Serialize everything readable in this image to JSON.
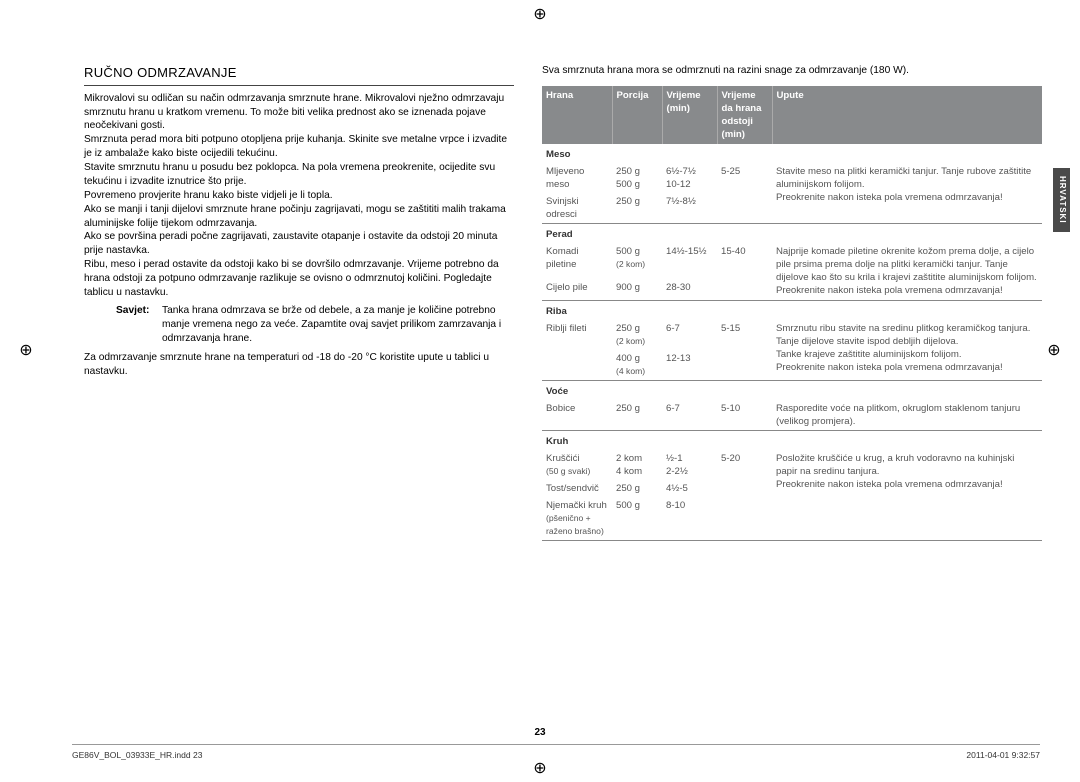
{
  "cropGlyph": "⊕",
  "sideTab": "HRVATSKI",
  "pageNumber": "23",
  "footerLeft": "GE86V_BOL_03933E_HR.indd   23",
  "footerRight": "2011-04-01   9:32:57",
  "left": {
    "heading": "RUČNO ODMRZAVANJE",
    "p1": "Mikrovalovi su odličan su način odmrzavanja smrznute hrane. Mikrovalovi nježno odmrzavaju smrznutu hranu u kratkom vremenu. To može biti velika prednost ako se iznenada pojave neočekivani gosti.",
    "p2": "Smrznuta perad mora biti potpuno otopljena prije kuhanja. Skinite sve metalne vrpce i izvadite je iz ambalaže kako biste ocijedili tekućinu.",
    "p3": "Stavite smrznutu hranu u posudu bez poklopca. Na pola vremena preokrenite, ocijedite svu tekućinu i izvadite iznutrice što prije.",
    "p4": "Povremeno provjerite hranu kako biste vidjeli je li topla.",
    "p5": "Ako se manji i tanji dijelovi smrznute hrane počinju zagrijavati, mogu se zaštititi malih trakama aluminijske folije tijekom odmrzavanja.",
    "p6": "Ako se površina peradi počne zagrijavati, zaustavite otapanje i ostavite da odstoji 20 minuta prije nastavka.",
    "p7": "Ribu, meso i perad ostavite da odstoji kako bi se dovršilo odmrzavanje. Vrijeme potrebno da hrana odstoji za potpuno odmrzavanje razlikuje se ovisno o odmrznutoj količini. Pogledajte tablicu u nastavku.",
    "savjetLabel": "Savjet:",
    "savjetText": "Tanka hrana odmrzava se brže od debele, a za manje je količine potrebno manje vremena nego za veće. Zapamtite ovaj savjet prilikom zamrzavanja i odmrzavanja hrane.",
    "p8": "Za odmrzavanje smrznute hrane na temperaturi od -18 do -20 °C koristite upute u tablici u nastavku."
  },
  "right": {
    "intro": "Sva smrznuta hrana mora se odmrznuti na razini snage za odmrzavanje (180 W).",
    "thead": {
      "hrana": "Hrana",
      "porcija": "Porcija",
      "v1": "Vrijeme (min)",
      "v2": "Vrijeme da hrana odstoji (min)",
      "upute": "Upute"
    },
    "groups": [
      {
        "cat": "Meso",
        "rows": [
          {
            "hrana": "Mljeveno meso",
            "porcija": "250 g\n500 g",
            "v1": "6½-7½\n10-12",
            "v2": "5-25",
            "upute": "Stavite meso na plitki keramički tanjur. Tanje rubove zaštitite aluminijskom folijom.\nPreokrenite nakon isteka pola vremena odmrzavanja!"
          },
          {
            "hrana": "Svinjski odresci",
            "porcija": "250 g",
            "v1": "7½-8½",
            "v2": "",
            "upute": ""
          }
        ]
      },
      {
        "cat": "Perad",
        "rows": [
          {
            "hrana": "Komadi piletine",
            "porcija": "500 g\n(2 kom)",
            "v1": "14½-15½",
            "v2": "15-40",
            "upute": "Najprije komade piletine okrenite kožom prema dolje, a cijelo pile prsima prema dolje na plitki keramički tanjur. Tanje dijelove kao što su krila i krajevi zaštitite aluminijskom folijom. Preokrenite nakon isteka pola vremena odmrzavanja!"
          },
          {
            "hrana": "Cijelo pile",
            "porcija": "900 g",
            "v1": "28-30",
            "v2": "",
            "upute": ""
          }
        ]
      },
      {
        "cat": "Riba",
        "rows": [
          {
            "hrana": "Riblji fileti",
            "porcija": "250 g\n(2 kom)",
            "v1": "6-7",
            "v2": "5-15",
            "upute": "Smrznutu ribu stavite na sredinu plitkog keramičkog tanjura.\nTanje dijelove stavite ispod debljih dijelova.\nTanke krajeve zaštitite aluminijskom folijom.\nPreokrenite nakon isteka pola vremena odmrzavanja!"
          },
          {
            "hrana": "",
            "porcija": "400 g\n(4 kom)",
            "v1": "12-13",
            "v2": "",
            "upute": ""
          }
        ]
      },
      {
        "cat": "Voće",
        "rows": [
          {
            "hrana": "Bobice",
            "porcija": "250 g",
            "v1": "6-7",
            "v2": "5-10",
            "upute": "Rasporedite voće na plitkom, okruglom staklenom tanjuru (velikog promjera)."
          }
        ]
      },
      {
        "cat": "Kruh",
        "rows": [
          {
            "hrana": "Kruščići\n(50 g svaki)",
            "porcija": "2 kom\n4 kom",
            "v1": "½-1\n2-2½",
            "v2": "5-20",
            "upute": "Posložite kruščiće u krug, a kruh vodoravno na kuhinjski papir na sredinu tanjura.\nPreokrenite nakon isteka pola vremena odmrzavanja!"
          },
          {
            "hrana": "Tost/sendvič",
            "porcija": "250 g",
            "v1": "4½-5",
            "v2": "",
            "upute": ""
          },
          {
            "hrana": "Njemački kruh\n(pšenično + raženo brašno)",
            "porcija": "500 g",
            "v1": "8-10",
            "v2": "",
            "upute": ""
          }
        ]
      }
    ]
  }
}
